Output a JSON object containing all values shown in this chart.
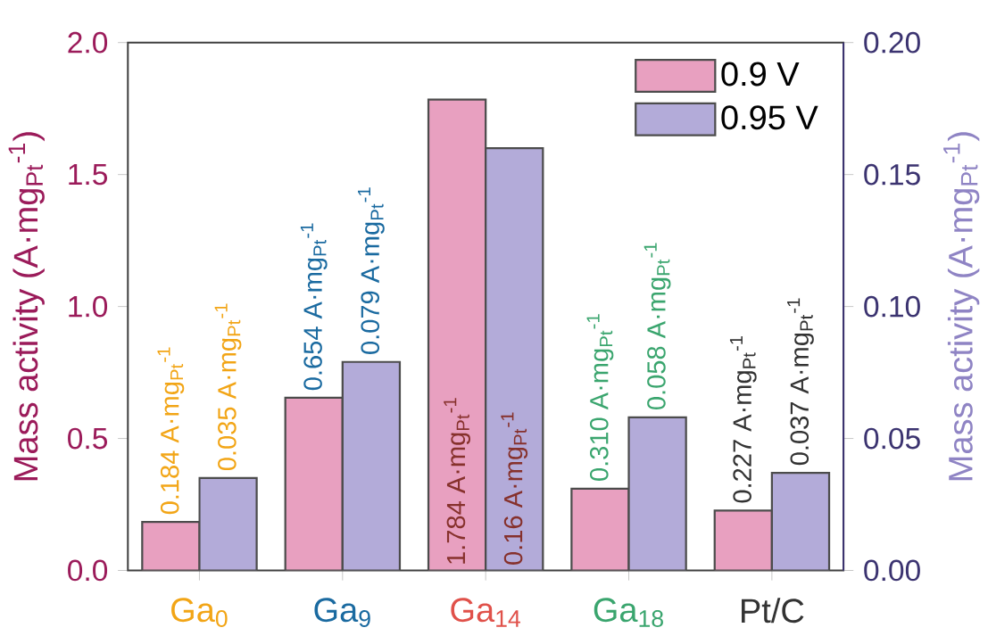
{
  "chart_data": {
    "type": "bar",
    "categories": [
      "Ga$_{0}$",
      "Ga$_{9}$",
      "Ga$_{14}$",
      "Ga$_{18}$",
      "Pt/C"
    ],
    "ylabel": "Mass activity (A·mg$_{Pt}$$^{-1}$)",
    "y2label": "Mass activity (A·mg$_{Pt}$$^{-1}$)",
    "ylim": [
      0,
      2.0
    ],
    "yticks": [
      {
        "value": 0,
        "label": "0.0"
      },
      {
        "value": 0.5,
        "label": "0.5"
      },
      {
        "value": 1.0,
        "label": "1.0"
      },
      {
        "value": 1.5,
        "label": "1.5"
      },
      {
        "value": 2.0,
        "label": "2.0"
      }
    ],
    "y2lim": [
      0,
      0.2
    ],
    "y2ticks": [
      {
        "value": 0,
        "label": "0.00"
      },
      {
        "value": 0.05,
        "label": "0.05"
      },
      {
        "value": 0.1,
        "label": "0.10"
      },
      {
        "value": 0.15,
        "label": "0.15"
      },
      {
        "value": 0.2,
        "label": "0.20"
      }
    ],
    "legend": "top right",
    "grid": false,
    "series": [
      {
        "name": "0.9 V",
        "color": "#e8a0c0",
        "values": [
          0.184,
          0.654,
          1.784,
          0.31,
          0.227
        ],
        "value_labels": [
          "0.184 A·mg$_{Pt}$$^{-1}$",
          "0.654 A·mg$_{Pt}$$^{-1}$",
          "1.784 A·mg$_{Pt}$$^{-1}$",
          "0.310 A·mg$_{Pt}$$^{-1}$",
          "0.227 A·mg$_{Pt}$$^{-1}$"
        ]
      },
      {
        "name": "0.95 V",
        "color": "#b3abd9",
        "axis": "y2",
        "values": [
          0.035,
          0.079,
          0.16,
          0.058,
          0.037
        ],
        "value_labels": [
          "0.035 A·mg$_{Pt}$$^{-1}$",
          "0.079 A·mg$_{Pt}$$^{-1}$",
          "0.16 A·mg$_{Pt}$$^{-1}$",
          "0.058 A·mg$_{Pt}$$^{-1}$",
          "0.037 A·mg$_{Pt}$$^{-1}$"
        ]
      }
    ]
  }
}
